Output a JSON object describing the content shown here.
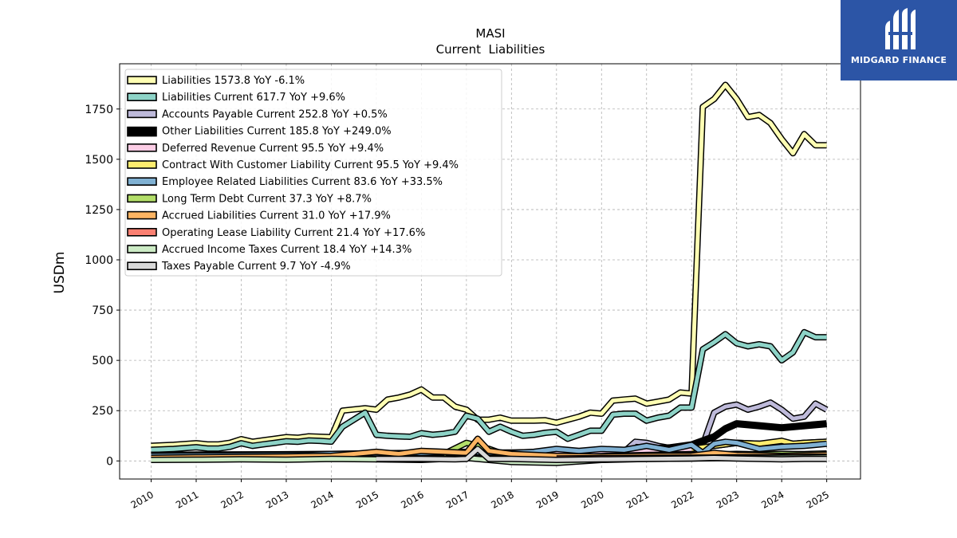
{
  "brand": {
    "name": "MIDGARD FINANCE",
    "color": "#2c55a6"
  },
  "chart_data": {
    "type": "line",
    "title": "MASI",
    "subtitle": "Current  Liabilities",
    "xlabel": "",
    "ylabel": "USDm",
    "ylim": [
      -90,
      1975
    ],
    "xlim": [
      2009.3,
      2025.75
    ],
    "yticks": [
      0,
      250,
      500,
      750,
      1000,
      1250,
      1500,
      1750
    ],
    "xticks": [
      "2010",
      "2011",
      "2012",
      "2013",
      "2014",
      "2015",
      "2016",
      "2017",
      "2018",
      "2019",
      "2020",
      "2021",
      "2022",
      "2023",
      "2024",
      "2025"
    ],
    "grid": true,
    "legend_position": "top-left",
    "series": [
      {
        "name": "Liabilities",
        "legend": "Liabilities  1573.8 YoY -6.1%",
        "color": "#ffffb3",
        "width": 5,
        "x": [
          2010.0,
          2010.5,
          2011.0,
          2011.25,
          2011.5,
          2011.75,
          2012.0,
          2012.25,
          2012.5,
          2012.75,
          2013.0,
          2013.25,
          2013.5,
          2013.75,
          2014.0,
          2014.25,
          2014.75,
          2015.0,
          2015.25,
          2015.5,
          2015.75,
          2016.0,
          2016.25,
          2016.5,
          2016.75,
          2017.0,
          2017.25,
          2017.5,
          2017.75,
          2018.0,
          2018.25,
          2018.5,
          2018.75,
          2019.0,
          2019.25,
          2019.5,
          2019.75,
          2020.0,
          2020.25,
          2020.5,
          2020.75,
          2021.0,
          2021.25,
          2021.5,
          2021.75,
          2022.0,
          2022.25,
          2022.5,
          2022.75,
          2023.0,
          2023.25,
          2023.5,
          2023.75,
          2024.0,
          2024.25,
          2024.5,
          2024.75,
          2025.0
        ],
        "y": [
          75,
          80,
          88,
          82,
          82,
          90,
          108,
          95,
          103,
          110,
          118,
          115,
          122,
          120,
          118,
          250,
          262,
          255,
          305,
          315,
          330,
          355,
          315,
          315,
          270,
          255,
          205,
          205,
          215,
          200,
          200,
          200,
          202,
          190,
          205,
          220,
          240,
          235,
          300,
          305,
          310,
          285,
          295,
          305,
          340,
          335,
          1760,
          1800,
          1870,
          1800,
          1710,
          1720,
          1680,
          1600,
          1530,
          1625,
          1570,
          1570
        ]
      },
      {
        "name": "Liabilities Current",
        "legend": "Liabilities Current  617.7 YoY +9.6%",
        "color": "#8dd3c7",
        "width": 5,
        "x": [
          2010.0,
          2010.5,
          2011.0,
          2011.25,
          2011.5,
          2011.75,
          2012.0,
          2012.25,
          2012.5,
          2012.75,
          2013.0,
          2013.25,
          2013.5,
          2013.75,
          2014.0,
          2014.25,
          2014.75,
          2015.0,
          2015.25,
          2015.5,
          2015.75,
          2016.0,
          2016.25,
          2016.5,
          2016.75,
          2017.0,
          2017.25,
          2017.5,
          2017.75,
          2018.0,
          2018.25,
          2018.5,
          2018.75,
          2019.0,
          2019.25,
          2019.5,
          2019.75,
          2020.0,
          2020.25,
          2020.5,
          2020.75,
          2021.0,
          2021.25,
          2021.5,
          2021.75,
          2022.0,
          2022.25,
          2022.5,
          2022.75,
          2023.0,
          2023.25,
          2023.5,
          2023.75,
          2024.0,
          2024.25,
          2024.5,
          2024.75,
          2025.0
        ],
        "y": [
          55,
          60,
          68,
          62,
          62,
          70,
          88,
          75,
          83,
          90,
          98,
          95,
          102,
          100,
          96,
          170,
          240,
          130,
          125,
          122,
          120,
          138,
          130,
          135,
          145,
          225,
          210,
          145,
          170,
          145,
          125,
          130,
          140,
          145,
          110,
          130,
          150,
          150,
          230,
          235,
          235,
          200,
          215,
          225,
          265,
          265,
          555,
          590,
          630,
          585,
          570,
          580,
          570,
          500,
          540,
          640,
          615,
          615
        ]
      },
      {
        "name": "Accounts Payable Current",
        "legend": "Accounts Payable Current  252.8 YoY +0.5%",
        "color": "#bebada",
        "width": 5,
        "x": [
          2010.0,
          2012.0,
          2014.0,
          2016.0,
          2017.0,
          2017.5,
          2018.0,
          2018.5,
          2019.0,
          2019.5,
          2020.0,
          2020.5,
          2020.75,
          2021.0,
          2021.25,
          2021.5,
          2021.75,
          2022.0,
          2022.25,
          2022.5,
          2022.75,
          2023.0,
          2023.25,
          2023.5,
          2023.75,
          2024.0,
          2024.25,
          2024.5,
          2024.75,
          2025.0
        ],
        "y": [
          20,
          22,
          25,
          28,
          30,
          28,
          30,
          32,
          35,
          38,
          40,
          45,
          95,
          90,
          75,
          65,
          70,
          70,
          80,
          240,
          270,
          280,
          255,
          270,
          290,
          255,
          210,
          220,
          285,
          255
        ]
      },
      {
        "name": "Other Liabilities Current",
        "legend": "Other Liabilities Current  185.8 YoY +249.0%",
        "color": "#000000",
        "width": 9,
        "x": [
          2010.0,
          2012.0,
          2014.0,
          2016.0,
          2018.0,
          2020.0,
          2021.0,
          2021.5,
          2022.0,
          2022.5,
          2022.75,
          2023.0,
          2023.5,
          2024.0,
          2024.5,
          2025.0
        ],
        "y": [
          28,
          30,
          30,
          32,
          30,
          35,
          60,
          65,
          80,
          120,
          160,
          185,
          175,
          165,
          175,
          185
        ]
      },
      {
        "name": "Deferred Revenue Current",
        "legend": "Deferred Revenue Current  95.5 YoY +9.4%",
        "color": "#fccde5",
        "width": 5,
        "x": [
          2010.0,
          2012.0,
          2014.0,
          2016.0,
          2017.0,
          2018.0,
          2019.0,
          2020.0,
          2021.0,
          2022.0,
          2022.5,
          2023.0,
          2023.5,
          2024.0,
          2024.5,
          2025.0
        ],
        "y": [
          30,
          32,
          35,
          38,
          40,
          42,
          45,
          50,
          55,
          60,
          75,
          90,
          85,
          80,
          90,
          95
        ]
      },
      {
        "name": "Contract With Customer Liability Current",
        "legend": "Contract With Customer Liability Current  95.5 YoY +9.4%",
        "color": "#ffed6f",
        "width": 5,
        "x": [
          2022.0,
          2022.5,
          2023.0,
          2023.5,
          2024.0,
          2024.25,
          2024.5,
          2025.0
        ],
        "y": [
          60,
          75,
          90,
          85,
          100,
          85,
          90,
          95
        ]
      },
      {
        "name": "Employee Related Liabilities Current",
        "legend": "Employee Related Liabilities Current  83.6 YoY +33.5%",
        "color": "#80b1d3",
        "width": 5,
        "x": [
          2010.0,
          2012.0,
          2013.5,
          2014.0,
          2015.0,
          2016.0,
          2017.0,
          2017.5,
          2018.0,
          2018.5,
          2019.0,
          2019.5,
          2020.0,
          2020.5,
          2021.0,
          2021.5,
          2022.0,
          2022.25,
          2022.5,
          2022.75,
          2023.0,
          2023.5,
          2024.0,
          2024.5,
          2025.0
        ],
        "y": [
          25,
          28,
          30,
          35,
          38,
          40,
          45,
          42,
          40,
          45,
          60,
          50,
          60,
          55,
          75,
          55,
          80,
          40,
          85,
          95,
          90,
          60,
          70,
          75,
          85
        ]
      },
      {
        "name": "Long Term Debt Current",
        "legend": "Long Term Debt Current  37.3 YoY +8.7%",
        "color": "#b3de69",
        "width": 5,
        "x": [
          2016.5,
          2017.0,
          2017.5,
          2018.0,
          2019.0,
          2020.0,
          2021.0,
          2022.0,
          2022.5,
          2023.0,
          2023.5,
          2024.0,
          2024.5,
          2025.0
        ],
        "y": [
          35,
          90,
          60,
          20,
          15,
          20,
          25,
          30,
          32,
          35,
          33,
          35,
          34,
          37
        ]
      },
      {
        "name": "Accrued Liabilities Current",
        "legend": "Accrued Liabilities Current  31.0 YoY +17.9%",
        "color": "#fdb462",
        "width": 5,
        "x": [
          2010.0,
          2011.0,
          2012.0,
          2013.0,
          2014.0,
          2014.75,
          2015.0,
          2015.5,
          2016.0,
          2016.5,
          2017.0,
          2017.25,
          2017.5,
          2018.0,
          2018.5,
          2019.0,
          2020.0,
          2021.0,
          2022.0,
          2022.5,
          2023.0,
          2023.5,
          2024.0,
          2024.5,
          2025.0
        ],
        "y": [
          15,
          18,
          20,
          22,
          25,
          40,
          45,
          35,
          50,
          45,
          40,
          110,
          50,
          35,
          30,
          25,
          22,
          25,
          26,
          40,
          30,
          28,
          25,
          28,
          31
        ]
      },
      {
        "name": "Operating Lease Liability Current",
        "legend": "Operating Lease Liability Current  21.4 YoY +17.6%",
        "color": "#fb8072",
        "width": 5,
        "x": [
          2019.0,
          2020.0,
          2021.0,
          2022.0,
          2023.0,
          2024.0,
          2025.0
        ],
        "y": [
          12,
          14,
          15,
          16,
          18,
          19,
          21
        ]
      },
      {
        "name": "Accrued Income Taxes Current",
        "legend": "Accrued Income Taxes Current  18.4 YoY +14.3%",
        "color": "#ccebc5",
        "width": 5,
        "x": [
          2010.0,
          2011.0,
          2012.0,
          2013.0,
          2014.0,
          2015.0,
          2016.0,
          2017.0,
          2018.0,
          2019.0,
          2020.0,
          2021.0,
          2022.0,
          2023.0,
          2024.0,
          2025.0
        ],
        "y": [
          5,
          6,
          8,
          6,
          10,
          8,
          5,
          15,
          -5,
          -10,
          5,
          10,
          12,
          15,
          16,
          18
        ]
      },
      {
        "name": "Taxes Payable Current",
        "legend": "Taxes Payable Current  9.7 YoY -4.9%",
        "color": "#d9d9d9",
        "width": 5,
        "x": [
          2015.0,
          2016.0,
          2016.75,
          2017.0,
          2017.25,
          2017.5,
          2018.0,
          2019.0,
          2020.0,
          2021.0,
          2022.0,
          2022.5,
          2023.0,
          2023.5,
          2024.0,
          2024.5,
          2025.0
        ],
        "y": [
          10,
          10,
          8,
          10,
          60,
          10,
          10,
          5,
          8,
          10,
          12,
          15,
          12,
          10,
          8,
          10,
          9.7
        ]
      }
    ]
  }
}
